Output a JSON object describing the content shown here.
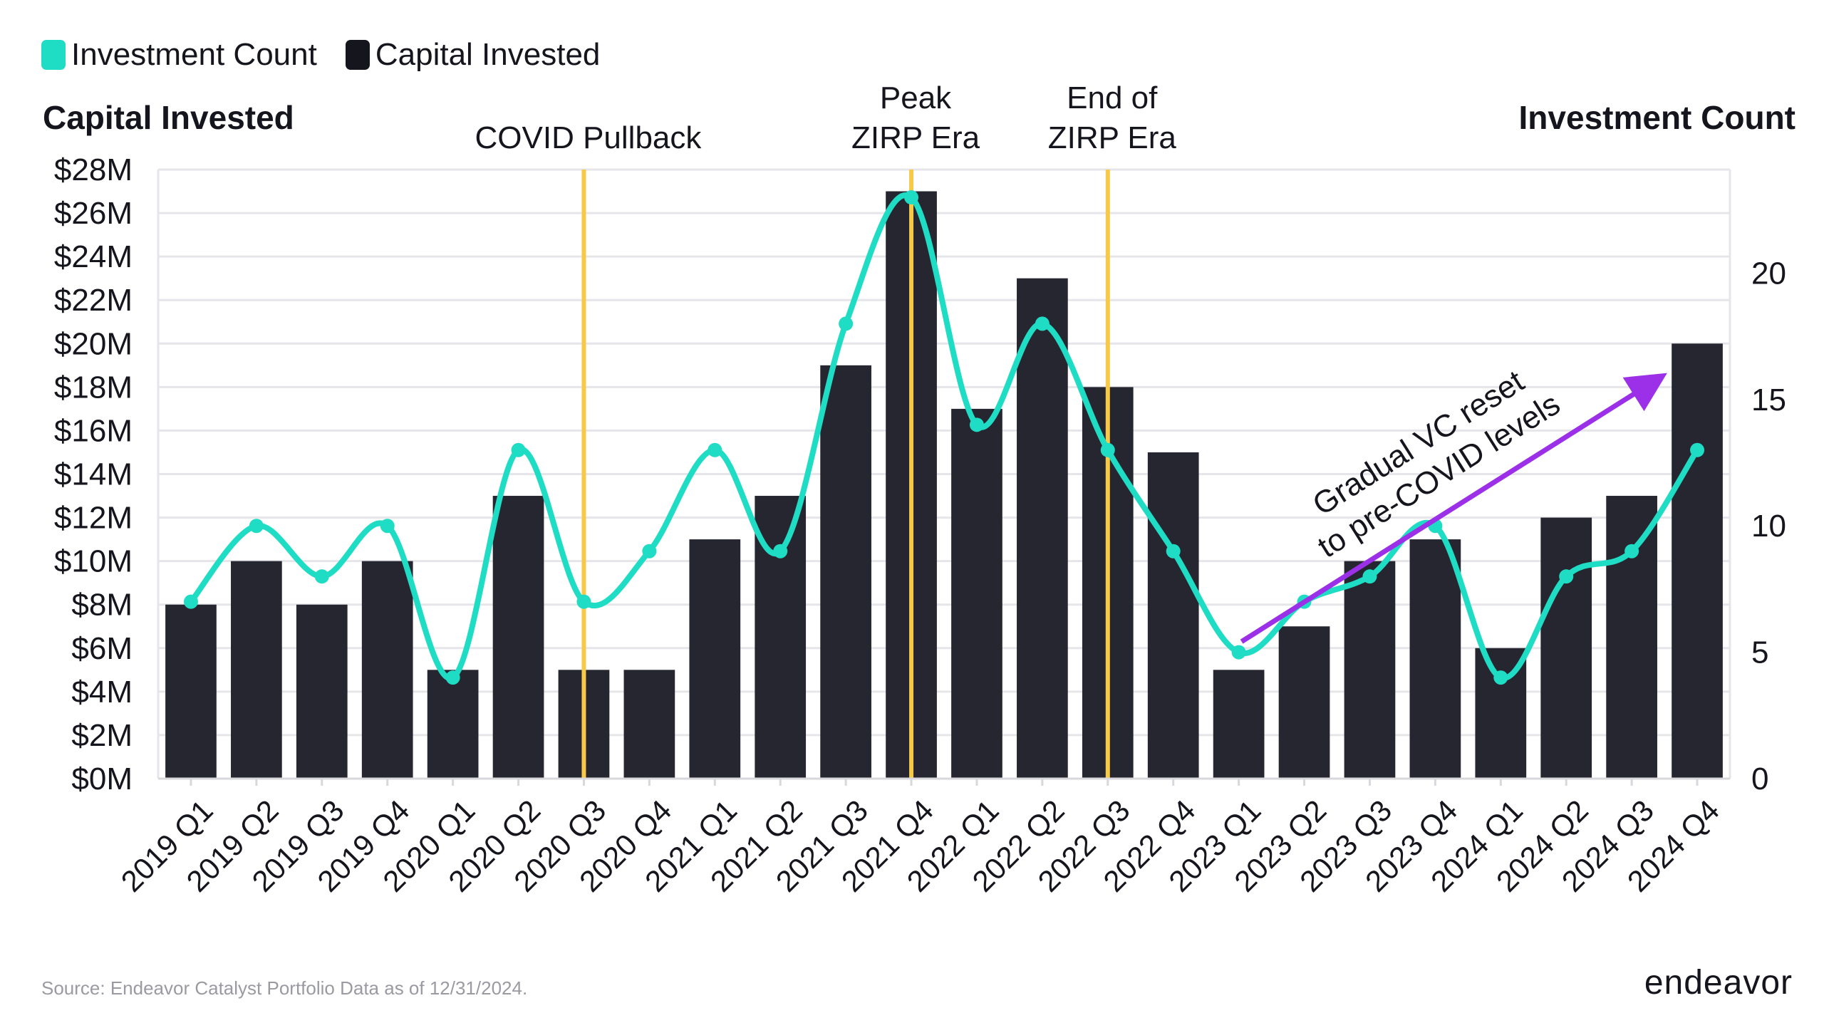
{
  "chart_data": {
    "type": "bar",
    "categories": [
      "2019 Q1",
      "2019 Q2",
      "2019 Q3",
      "2019 Q4",
      "2020 Q1",
      "2020 Q2",
      "2020 Q3",
      "2020 Q4",
      "2021 Q1",
      "2021 Q2",
      "2021 Q3",
      "2021 Q4",
      "2022 Q1",
      "2022 Q2",
      "2022 Q3",
      "2022 Q4",
      "2023 Q1",
      "2023 Q2",
      "2023 Q3",
      "2023 Q4",
      "2024 Q1",
      "2024 Q2",
      "2024 Q3",
      "2024 Q4"
    ],
    "series": [
      {
        "name": "Capital Invested",
        "type": "bar",
        "axis": "left",
        "values": [
          8,
          10,
          8,
          10,
          5,
          13,
          5,
          5,
          11,
          13,
          19,
          27,
          17,
          23,
          18,
          15,
          5,
          7,
          10,
          11,
          6,
          12,
          13,
          20
        ]
      },
      {
        "name": "Investment Count",
        "type": "line",
        "axis": "right",
        "values": [
          7,
          10,
          8,
          10,
          4,
          13,
          7,
          9,
          13,
          9,
          18,
          23,
          14,
          18,
          13,
          9,
          5,
          7,
          8,
          10,
          4,
          8,
          9,
          13
        ]
      }
    ],
    "left_axis": {
      "title": "Capital Invested",
      "ylim": [
        0,
        28
      ],
      "ticks": [
        "$0M",
        "$2M",
        "$4M",
        "$6M",
        "$8M",
        "$10M",
        "$12M",
        "$14M",
        "$16M",
        "$18M",
        "$20M",
        "$22M",
        "$24M",
        "$26M",
        "$28M"
      ]
    },
    "right_axis": {
      "title": "Investment Count",
      "ylim": [
        0,
        24.1
      ],
      "ticks": [
        "0",
        "5",
        "10",
        "15",
        "20"
      ]
    },
    "grid": true,
    "legend": {
      "placement": "top-left"
    },
    "annotations": [
      {
        "type": "vline",
        "at_category": "2020 Q3",
        "lines": [
          "COVID Pullback"
        ]
      },
      {
        "type": "vline",
        "at_category": "2021 Q4",
        "lines": [
          "Peak",
          "ZIRP Era"
        ]
      },
      {
        "type": "vline",
        "at_category": "2022 Q3",
        "lines": [
          "End of",
          "ZIRP Era"
        ]
      },
      {
        "type": "arrow",
        "from": [
          "2023 Q1",
          6.3
        ],
        "to": [
          "2024 Q4",
          18.4
        ],
        "lines": [
          "Gradual VC reset",
          "to pre-COVID levels"
        ]
      }
    ],
    "colors": {
      "bar": "#262630",
      "line": "#1fdcc4",
      "vline": "#f7c948",
      "arrow": "#9b30e8",
      "grid": "#e6e6ea"
    }
  },
  "legend_items": [
    {
      "label": "Investment Count",
      "color": "#1fdcc4"
    },
    {
      "label": "Capital Invested",
      "color": "#15151d"
    }
  ],
  "footer": {
    "source": "Source: Endeavor Catalyst Portfolio Data as of 12/31/2024.",
    "logo": "endeavor"
  }
}
